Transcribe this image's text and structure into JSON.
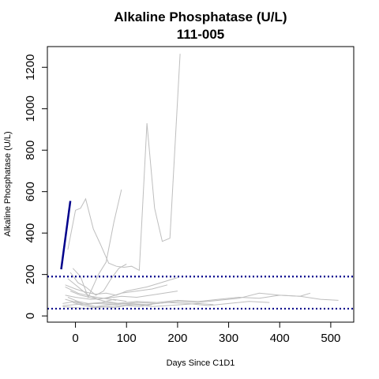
{
  "chart_data": {
    "type": "line",
    "title": "Alkaline Phosphatase (U/L)",
    "subtitle": "111-005",
    "xlabel": "Days Since C1D1",
    "ylabel": "Alkaline Phosphatase (U/L)",
    "xlim": [
      -55,
      545
    ],
    "ylim": [
      -30,
      1300
    ],
    "xticks": [
      0,
      100,
      200,
      300,
      400,
      500
    ],
    "yticks": [
      0,
      200,
      400,
      600,
      800,
      1000,
      1200
    ],
    "grid": false,
    "legend": "none",
    "reference_lines": [
      {
        "y": 190,
        "color": "#00008B",
        "style": "dotted"
      },
      {
        "y": 35,
        "color": "#00008B",
        "style": "dotted"
      }
    ],
    "colors": {
      "highlight": "#00008B",
      "background": "#BEBEBE"
    },
    "highlight_series": {
      "x": [
        -28,
        -10
      ],
      "y": [
        225,
        555
      ]
    },
    "series": [
      {
        "x": [
          -15,
          0,
          10,
          20,
          35,
          50,
          65,
          80,
          95,
          110,
          125,
          140,
          155,
          170,
          185,
          205
        ],
        "y": [
          320,
          510,
          520,
          565,
          420,
          340,
          255,
          240,
          235,
          240,
          220,
          930,
          520,
          360,
          375,
          1265
        ]
      },
      {
        "x": [
          -5,
          10,
          25,
          45,
          60,
          75,
          90
        ],
        "y": [
          230,
          190,
          90,
          200,
          260,
          450,
          610
        ]
      },
      {
        "x": [
          -10,
          5,
          20,
          40,
          55,
          70,
          85,
          100
        ],
        "y": [
          210,
          160,
          140,
          100,
          120,
          180,
          230,
          250
        ]
      },
      {
        "x": [
          -20,
          0,
          20,
          40,
          60,
          80,
          100,
          120,
          140,
          160,
          180,
          200
        ],
        "y": [
          150,
          130,
          115,
          105,
          110,
          100,
          120,
          130,
          140,
          155,
          170,
          185
        ]
      },
      {
        "x": [
          -15,
          5,
          25,
          45,
          65,
          90,
          120,
          150,
          180
        ],
        "y": [
          180,
          140,
          100,
          80,
          90,
          110,
          120,
          130,
          150
        ]
      },
      {
        "x": [
          -20,
          0,
          30,
          60,
          90,
          120,
          160,
          200
        ],
        "y": [
          100,
          90,
          80,
          85,
          95,
          90,
          105,
          120
        ]
      },
      {
        "x": [
          -25,
          0,
          20,
          50,
          80,
          120,
          160,
          200,
          240,
          280,
          320,
          360,
          400,
          440,
          460
        ],
        "y": [
          60,
          70,
          55,
          65,
          60,
          70,
          65,
          75,
          70,
          80,
          90,
          85,
          100,
          95,
          110
        ]
      },
      {
        "x": [
          -25,
          0,
          40,
          80,
          120,
          160,
          200,
          240,
          280,
          320,
          360,
          400,
          440,
          480,
          515
        ],
        "y": [
          50,
          55,
          60,
          55,
          65,
          60,
          70,
          65,
          75,
          85,
          110,
          100,
          95,
          80,
          75
        ]
      },
      {
        "x": [
          -20,
          10,
          40,
          70,
          100,
          140,
          180,
          220,
          260,
          300,
          340,
          380
        ],
        "y": [
          80,
          60,
          45,
          55,
          60,
          55,
          65,
          60,
          50,
          60,
          70,
          65
        ]
      },
      {
        "x": [
          -15,
          5,
          25,
          50,
          75,
          100
        ],
        "y": [
          90,
          70,
          60,
          65,
          80,
          70
        ]
      },
      {
        "x": [
          -10,
          10,
          35,
          60,
          85,
          110,
          140
        ],
        "y": [
          120,
          100,
          85,
          70,
          60,
          55,
          50
        ]
      },
      {
        "x": [
          -5,
          15,
          40,
          65,
          90,
          120,
          150,
          180,
          210,
          240,
          270
        ],
        "y": [
          65,
          50,
          40,
          45,
          50,
          55,
          45,
          50,
          55,
          60,
          55
        ]
      },
      {
        "x": [
          -20,
          5,
          30,
          55,
          80
        ],
        "y": [
          140,
          110,
          95,
          85,
          75
        ]
      },
      {
        "x": [
          -25,
          0,
          25,
          50,
          75,
          100,
          125,
          150
        ],
        "y": [
          45,
          40,
          35,
          45,
          40,
          50,
          45,
          55
        ]
      }
    ]
  }
}
